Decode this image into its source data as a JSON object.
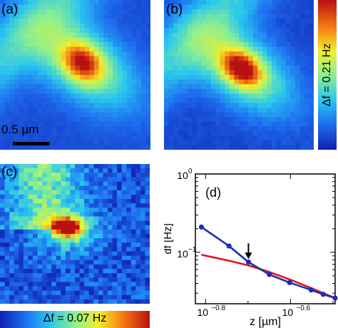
{
  "panels": {
    "a": {
      "label": "(a)",
      "scalebar": "0.5  µm"
    },
    "b": {
      "label": "(b)"
    },
    "c": {
      "label": "(c)"
    },
    "d": {
      "label": "(d)"
    }
  },
  "colorbars": {
    "right": {
      "label": "Δf = 0.21 Hz"
    },
    "bottom": {
      "label": "Δf = 0.07 Hz"
    }
  },
  "chart_data": {
    "type": "line",
    "title": "",
    "xlabel": "z [µm]",
    "ylabel": "df [Hz]",
    "xscale": "log",
    "yscale": "log",
    "xlim": [
      0.15,
      0.32
    ],
    "ylim": [
      0.022,
      1.0
    ],
    "x_ticks": [
      "10",
      "10",
      "10"
    ],
    "x_tick_exponents": [
      "−0.8",
      "−0.6",
      "−0.4"
    ],
    "y_ticks": [
      "10",
      "10"
    ],
    "y_tick_exponents": [
      "0",
      "−1"
    ],
    "series": [
      {
        "color": "#1a2fb0",
        "marker": "circle",
        "x": [
          0.155,
          0.18,
          0.2,
          0.224,
          0.25,
          0.281,
          0.3,
          0.32
        ],
        "y": [
          0.21,
          0.12,
          0.075,
          0.052,
          0.041,
          0.033,
          0.029,
          0.026
        ]
      },
      {
        "color": "#e0141e",
        "marker": "none",
        "x": [
          0.155,
          0.18,
          0.2,
          0.224,
          0.25,
          0.281,
          0.3,
          0.32
        ],
        "y": [
          0.093,
          0.078,
          0.068,
          0.056,
          0.045,
          0.035,
          0.03,
          0.026
        ]
      }
    ],
    "annotation": {
      "type": "arrow",
      "x": 0.2,
      "y_from": 0.13,
      "y_to": 0.082
    }
  }
}
